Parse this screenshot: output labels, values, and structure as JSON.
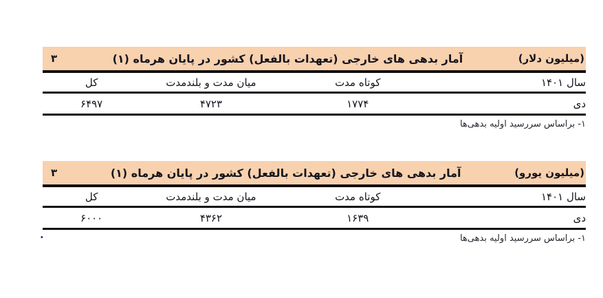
{
  "document": {
    "background": "#ffffff",
    "band_color": "#f8d1ae",
    "rule_color": "#0f0f0f",
    "trailing_mark": "."
  },
  "tables": [
    {
      "id": "usd",
      "page_number": "۳",
      "title": "آمار بدهی های خارجی (تعهدات بالفعل) کشور در پایان هرماه (۱)",
      "unit_label": "(میلیون دلار)",
      "columns": {
        "year": "سال ۱۴۰۱",
        "short_term": "کوتاه مدت",
        "mid_long_term": "میان مدت و بلندمدت",
        "total": "کل"
      },
      "row": {
        "month": "دی",
        "short_term": "۱۷۷۴",
        "mid_long_term": "۴۷۲۳",
        "total": "۶۴۹۷"
      },
      "footnote": "۱- براساس سررسید اولیه بدهی‌ها"
    },
    {
      "id": "eur",
      "page_number": "۳",
      "title": "آمار بدهی های خارجی (تعهدات بالفعل) کشور در پایان هرماه (۱)",
      "unit_label": "(میلیون یورو)",
      "columns": {
        "year": "سال ۱۴۰۱",
        "short_term": "کوتاه مدت",
        "mid_long_term": "میان مدت و بلندمدت",
        "total": "کل"
      },
      "row": {
        "month": "دی",
        "short_term": "۱۶۳۹",
        "mid_long_term": "۴۳۶۲",
        "total": "۶۰۰۰"
      },
      "footnote": "۱- براساس سررسید اولیه بدهی‌ها"
    }
  ]
}
